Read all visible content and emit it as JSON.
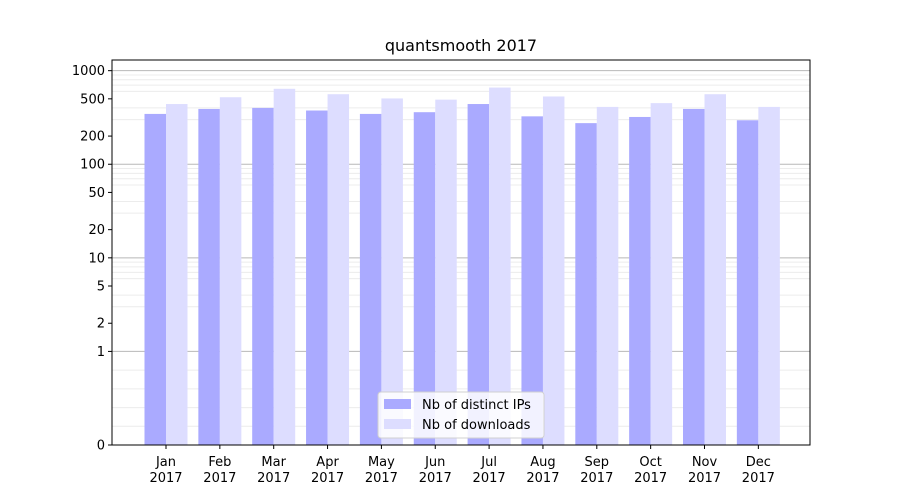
{
  "chart_data": {
    "type": "bar",
    "title": "quantsmooth 2017",
    "xlabel": "",
    "ylabel": "",
    "y_scale": "symlog",
    "ylim": [
      0,
      1300
    ],
    "y_ticks": [
      0,
      1,
      2,
      5,
      10,
      20,
      50,
      100,
      200,
      500,
      1000
    ],
    "y_tick_labels": [
      "0",
      "1",
      "2",
      "5",
      "10",
      "20",
      "50",
      "100",
      "200",
      "500",
      "1000"
    ],
    "grid": true,
    "legend_position": "bottom-center",
    "categories": [
      [
        "Jan",
        "2017"
      ],
      [
        "Feb",
        "2017"
      ],
      [
        "Mar",
        "2017"
      ],
      [
        "Apr",
        "2017"
      ],
      [
        "May",
        "2017"
      ],
      [
        "Jun",
        "2017"
      ],
      [
        "Jul",
        "2017"
      ],
      [
        "Aug",
        "2017"
      ],
      [
        "Sep",
        "2017"
      ],
      [
        "Oct",
        "2017"
      ],
      [
        "Nov",
        "2017"
      ],
      [
        "Dec",
        "2017"
      ]
    ],
    "series": [
      {
        "name": "Nb of distinct IPs",
        "color": "#aaaaff",
        "values": [
          345,
          390,
          400,
          375,
          345,
          360,
          440,
          325,
          275,
          320,
          390,
          295
        ]
      },
      {
        "name": "Nb of downloads",
        "color": "#ddddff",
        "values": [
          440,
          520,
          640,
          560,
          505,
          490,
          660,
          530,
          410,
          450,
          560,
          410
        ]
      }
    ]
  }
}
